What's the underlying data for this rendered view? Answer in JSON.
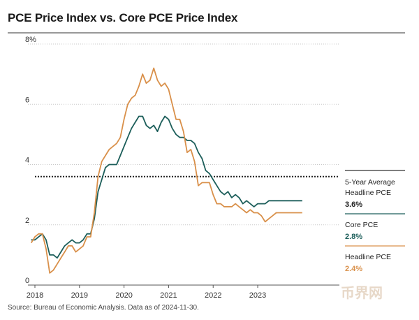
{
  "title": "PCE Price Index vs. Core PCE Price Index",
  "source": "Source: Bureau of Economic Analysis. Data as of 2024-11-30.",
  "watermark": "币界网",
  "colors": {
    "headline": "#d9904a",
    "core": "#1c5e5a",
    "reference": "#222222",
    "grid": "#c8c8c8"
  },
  "chart_data": {
    "type": "line",
    "title": "PCE Price Index vs. Core PCE Price Index",
    "xlabel": "",
    "ylabel": "",
    "ylim": [
      0,
      8
    ],
    "y_ticks": [
      "8%",
      "6",
      "4",
      "2",
      "0"
    ],
    "x_ticks": [
      "2018",
      "2019",
      "2020",
      "2021",
      "2022",
      "2023"
    ],
    "x_range": [
      2018.0,
      2024.833
    ],
    "reference_line": {
      "value": 3.6,
      "label_lines": [
        "5-Year Average",
        "Headline PCE"
      ],
      "value_label": "3.6%"
    },
    "series": [
      {
        "name": "Core PCE",
        "label": "Core PCE",
        "value_label": "2.8%",
        "x": [
          2017.917,
          2018.0,
          2018.083,
          2018.167,
          2018.25,
          2018.333,
          2018.417,
          2018.5,
          2018.583,
          2018.667,
          2018.75,
          2018.833,
          2018.917,
          2019.0,
          2019.083,
          2019.167,
          2019.25,
          2019.333,
          2019.417,
          2019.5,
          2019.583,
          2019.667,
          2019.75,
          2019.833,
          2019.917,
          2020.0,
          2020.083,
          2020.167,
          2020.25,
          2020.333,
          2020.417,
          2020.5,
          2020.583,
          2020.667,
          2020.75,
          2020.833,
          2020.917,
          2021.0,
          2021.083,
          2021.167,
          2021.25,
          2021.333,
          2021.417,
          2021.5,
          2021.583,
          2021.667,
          2021.75,
          2021.833,
          2021.917,
          2022.0,
          2022.083,
          2022.167,
          2022.25,
          2022.333,
          2022.417,
          2022.5,
          2022.583,
          2022.667,
          2022.75,
          2022.833,
          2022.917,
          2023.0,
          2023.083,
          2023.167,
          2023.25,
          2023.333,
          2023.417,
          2023.5,
          2023.583,
          2023.667,
          2023.75,
          2023.833,
          2023.917,
          2024.0
        ],
        "values": [
          1.5,
          1.5,
          1.6,
          1.7,
          1.5,
          1.0,
          1.0,
          0.9,
          1.1,
          1.3,
          1.4,
          1.5,
          1.4,
          1.4,
          1.5,
          1.7,
          1.7,
          2.2,
          3.1,
          3.5,
          3.9,
          4.0,
          4.0,
          4.0,
          4.3,
          4.6,
          4.9,
          5.2,
          5.4,
          5.6,
          5.6,
          5.3,
          5.2,
          5.3,
          5.1,
          5.4,
          5.6,
          5.5,
          5.2,
          5.0,
          4.9,
          4.9,
          4.8,
          4.8,
          4.7,
          4.4,
          4.2,
          3.8,
          3.7,
          3.5,
          3.3,
          3.1,
          3.0,
          3.1,
          2.9,
          3.0,
          2.9,
          2.7,
          2.8,
          2.7,
          2.6,
          2.7,
          2.7,
          2.7,
          2.8,
          2.8,
          2.8,
          2.8,
          2.8,
          2.8,
          2.8,
          2.8,
          2.8,
          2.8
        ]
      },
      {
        "name": "Headline PCE",
        "label": "Headline PCE",
        "value_label": "2.4%",
        "x": [
          2017.917,
          2018.0,
          2018.083,
          2018.167,
          2018.25,
          2018.333,
          2018.417,
          2018.5,
          2018.583,
          2018.667,
          2018.75,
          2018.833,
          2018.917,
          2019.0,
          2019.083,
          2019.167,
          2019.25,
          2019.333,
          2019.417,
          2019.5,
          2019.583,
          2019.667,
          2019.75,
          2019.833,
          2019.917,
          2020.0,
          2020.083,
          2020.167,
          2020.25,
          2020.333,
          2020.417,
          2020.5,
          2020.583,
          2020.667,
          2020.75,
          2020.833,
          2020.917,
          2021.0,
          2021.083,
          2021.167,
          2021.25,
          2021.333,
          2021.417,
          2021.5,
          2021.583,
          2021.667,
          2021.75,
          2021.833,
          2021.917,
          2022.0,
          2022.083,
          2022.167,
          2022.25,
          2022.333,
          2022.417,
          2022.5,
          2022.583,
          2022.667,
          2022.75,
          2022.833,
          2022.917,
          2023.0,
          2023.083,
          2023.167,
          2023.25,
          2023.333,
          2023.417,
          2023.5,
          2023.583,
          2023.667,
          2023.75,
          2023.833,
          2023.917,
          2024.0
        ],
        "values": [
          1.4,
          1.6,
          1.7,
          1.7,
          1.2,
          0.4,
          0.5,
          0.7,
          0.9,
          1.1,
          1.3,
          1.3,
          1.1,
          1.2,
          1.3,
          1.6,
          1.6,
          2.4,
          3.6,
          4.1,
          4.3,
          4.5,
          4.6,
          4.7,
          4.9,
          5.5,
          6.0,
          6.2,
          6.3,
          6.6,
          7.0,
          6.7,
          6.8,
          7.2,
          6.8,
          6.6,
          6.7,
          6.5,
          6.0,
          5.5,
          5.5,
          5.1,
          4.4,
          4.5,
          4.1,
          3.3,
          3.4,
          3.4,
          3.4,
          3.0,
          2.7,
          2.7,
          2.6,
          2.6,
          2.6,
          2.7,
          2.6,
          2.5,
          2.4,
          2.5,
          2.4,
          2.4,
          2.3,
          2.1,
          2.2,
          2.3,
          2.4,
          2.4,
          2.4,
          2.4,
          2.4,
          2.4,
          2.4,
          2.4
        ]
      }
    ]
  }
}
